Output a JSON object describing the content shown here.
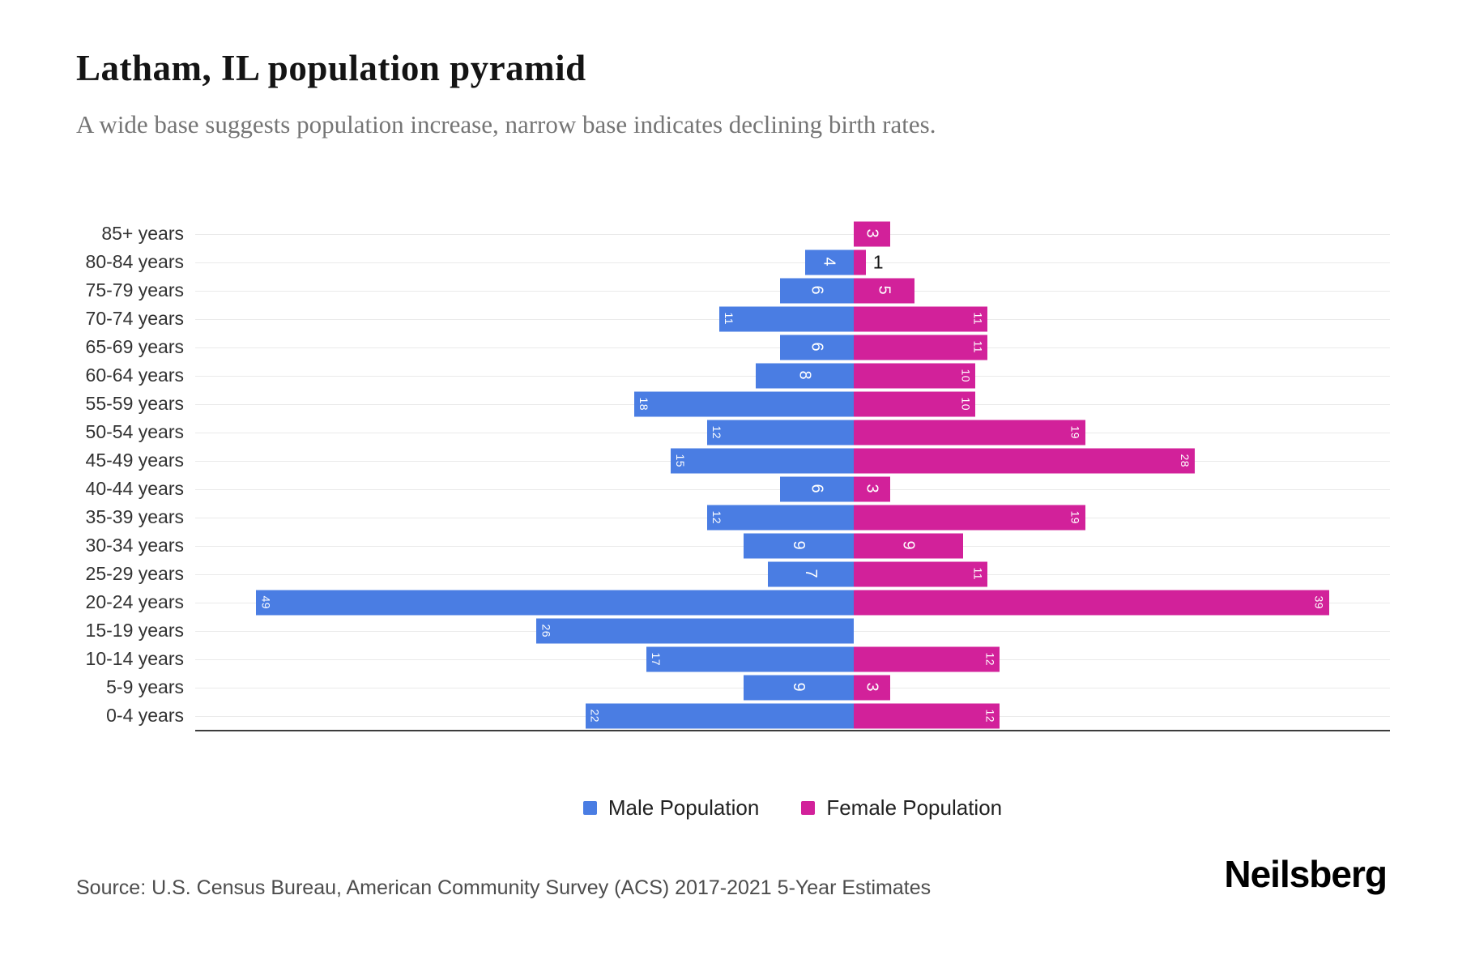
{
  "title": "Latham, IL population pyramid",
  "subtitle": "A wide base suggests population increase, narrow base indicates declining birth rates.",
  "source": "Source: U.S. Census Bureau, American Community Survey (ACS) 2017-2021 5-Year Estimates",
  "brand": "Neilsberg",
  "legend": {
    "male": "Male Population",
    "female": "Female Population"
  },
  "colors": {
    "male": "#4a7de3",
    "female": "#d2219a",
    "grid": "#eaeaea",
    "axis": "#3c3c3c",
    "title": "#141414",
    "subtitle": "#757575",
    "label": "#333333",
    "source": "#4d4d4d"
  },
  "chart_data": {
    "type": "bar",
    "variant": "population-pyramid",
    "orientation": "horizontal",
    "title": "Latham, IL population pyramid",
    "categories": [
      "85+ years",
      "80-84 years",
      "75-79 years",
      "70-74 years",
      "65-69 years",
      "60-64 years",
      "55-59 years",
      "50-54 years",
      "45-49 years",
      "40-44 years",
      "35-39 years",
      "30-34 years",
      "25-29 years",
      "20-24 years",
      "15-19 years",
      "10-14 years",
      "5-9 years",
      "0-4 years"
    ],
    "series": [
      {
        "name": "Male Population",
        "side": "left",
        "color": "#4a7de3",
        "values": [
          0,
          4,
          6,
          11,
          6,
          8,
          18,
          12,
          15,
          6,
          12,
          9,
          7,
          49,
          26,
          17,
          9,
          22
        ]
      },
      {
        "name": "Female Population",
        "side": "right",
        "color": "#d2219a",
        "values": [
          3,
          1,
          5,
          11,
          11,
          10,
          10,
          19,
          28,
          3,
          19,
          9,
          11,
          39,
          0,
          12,
          3,
          12
        ]
      }
    ],
    "xlim": [
      -54,
      44
    ],
    "grid": "horizontal",
    "legend_position": "bottom-center",
    "bar_labels": "inside bars, rotated 90deg, white; values below 3 shown outside in black"
  }
}
